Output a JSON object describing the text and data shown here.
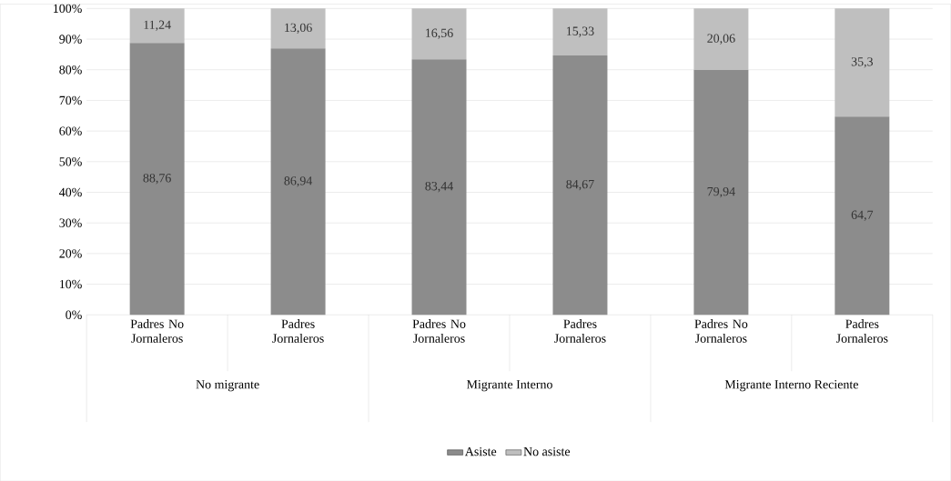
{
  "chart_data": {
    "type": "bar",
    "stacked": true,
    "categories": [
      "Padres No Jornaleros",
      "Padres Jornaleros",
      "Padres No Jornaleros",
      "Padres Jornaleros",
      "Padres No Jornaleros",
      "Padres Jornaleros"
    ],
    "series": [
      {
        "name": "Asiste",
        "color": "#8c8c8c",
        "values": [
          88.76,
          86.94,
          83.44,
          84.67,
          79.94,
          64.7
        ],
        "value_labels": [
          "88,76",
          "86,94",
          "83,44",
          "84,67",
          "79,94",
          "64,7"
        ]
      },
      {
        "name": "No asiste",
        "color": "#bfbfbf",
        "values": [
          11.24,
          13.06,
          16.56,
          15.33,
          20.06,
          35.3
        ],
        "value_labels": [
          "11,24",
          "13,06",
          "16,56",
          "15,33",
          "20,06",
          "35,3"
        ]
      }
    ],
    "annotations": [
      "No migrante",
      "Migrante Interno",
      "Migrante Interno Reciente"
    ],
    "ylim": [
      0,
      100
    ],
    "yticks": [
      {
        "value": 0,
        "label": "0%"
      },
      {
        "value": 10,
        "label": "10%"
      },
      {
        "value": 20,
        "label": "20%"
      },
      {
        "value": 30,
        "label": "30%"
      },
      {
        "value": 40,
        "label": "40%"
      },
      {
        "value": 50,
        "label": "50%"
      },
      {
        "value": 60,
        "label": "60%"
      },
      {
        "value": 70,
        "label": "70%"
      },
      {
        "value": 80,
        "label": "80%"
      },
      {
        "value": 90,
        "label": "90%"
      },
      {
        "value": 100,
        "label": "100%"
      }
    ],
    "grid": "y",
    "legend": "bottom"
  }
}
